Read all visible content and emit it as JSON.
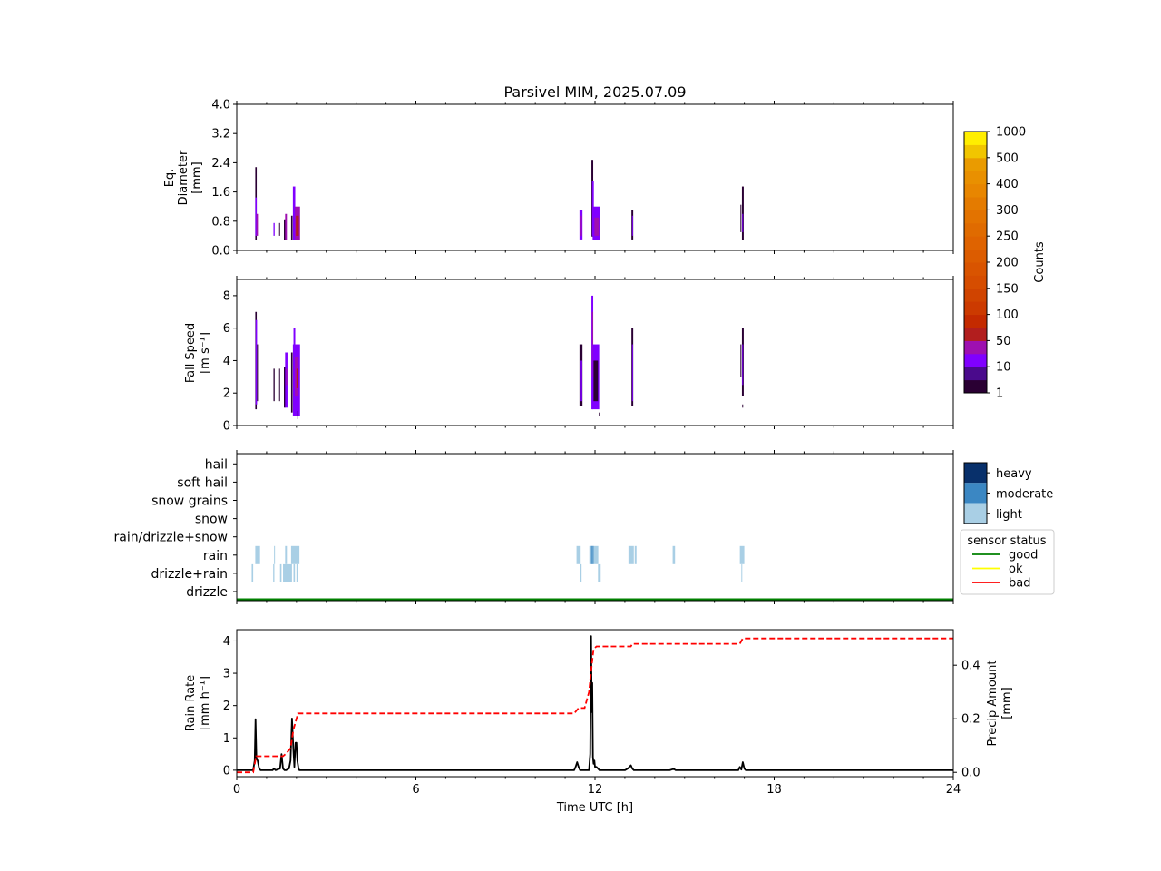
{
  "title": "Parsivel MIM, 2025.07.09",
  "chart_data": [
    {
      "type": "heatmap",
      "panel": "diameter",
      "ylabel": [
        "Eq.",
        "Diameter",
        "[mm]"
      ],
      "ylim": [
        0,
        4.0
      ],
      "yticks": [
        "0.0",
        "0.8",
        "1.6",
        "2.4",
        "3.2",
        "4.0"
      ],
      "ytick_values": [
        0,
        0.8,
        1.6,
        2.4,
        3.2,
        4.0
      ],
      "xlim": [
        0,
        24
      ],
      "columns": [
        {
          "t": 0.62,
          "w": 0.05,
          "ymin": 0.28,
          "ymax": 2.28,
          "level": 1
        },
        {
          "t": 0.62,
          "w": 0.05,
          "ymin": 0.4,
          "ymax": 1.45,
          "level": 2
        },
        {
          "t": 0.66,
          "w": 0.05,
          "ymin": 0.4,
          "ymax": 1.0,
          "level": 3
        },
        {
          "t": 1.23,
          "w": 0.04,
          "ymin": 0.4,
          "ymax": 0.75,
          "level": 2
        },
        {
          "t": 1.42,
          "w": 0.03,
          "ymin": 0.4,
          "ymax": 0.75,
          "level": 1
        },
        {
          "t": 1.58,
          "w": 0.05,
          "ymin": 0.28,
          "ymax": 0.85,
          "level": 1
        },
        {
          "t": 1.62,
          "w": 0.06,
          "ymin": 0.28,
          "ymax": 1.0,
          "level": 3
        },
        {
          "t": 1.82,
          "w": 0.05,
          "ymin": 0.28,
          "ymax": 0.95,
          "level": 1
        },
        {
          "t": 1.88,
          "w": 0.08,
          "ymin": 0.28,
          "ymax": 1.75,
          "level": 2
        },
        {
          "t": 1.95,
          "w": 0.17,
          "ymin": 0.28,
          "ymax": 1.2,
          "level": 3
        },
        {
          "t": 1.98,
          "w": 0.1,
          "ymin": 0.4,
          "ymax": 0.95,
          "level": 4
        },
        {
          "t": 11.48,
          "w": 0.1,
          "ymin": 0.3,
          "ymax": 1.1,
          "level": 2
        },
        {
          "t": 11.52,
          "w": 0.04,
          "ymin": 0.4,
          "ymax": 0.95,
          "level": 3
        },
        {
          "t": 11.88,
          "w": 0.06,
          "ymin": 0.38,
          "ymax": 2.48,
          "level": 1
        },
        {
          "t": 11.9,
          "w": 0.06,
          "ymin": 0.4,
          "ymax": 1.9,
          "level": 2
        },
        {
          "t": 11.92,
          "w": 0.25,
          "ymin": 0.28,
          "ymax": 1.2,
          "level": 2
        },
        {
          "t": 11.98,
          "w": 0.15,
          "ymin": 0.4,
          "ymax": 0.9,
          "level": 3
        },
        {
          "t": 13.22,
          "w": 0.06,
          "ymin": 0.3,
          "ymax": 1.1,
          "level": 1
        },
        {
          "t": 13.24,
          "w": 0.03,
          "ymin": 0.4,
          "ymax": 0.95,
          "level": 2
        },
        {
          "t": 16.87,
          "w": 0.02,
          "ymin": 0.5,
          "ymax": 1.25,
          "level": 1
        },
        {
          "t": 16.92,
          "w": 0.06,
          "ymin": 0.28,
          "ymax": 1.75,
          "level": 1
        },
        {
          "t": 16.93,
          "w": 0.03,
          "ymin": 0.5,
          "ymax": 1.0,
          "level": 2
        }
      ]
    },
    {
      "type": "heatmap",
      "panel": "fall_speed",
      "ylabel": [
        "Fall Speed",
        "[m s⁻¹]"
      ],
      "ylim": [
        0,
        9
      ],
      "yticks": [
        "0",
        "2",
        "4",
        "6",
        "8"
      ],
      "ytick_values": [
        0,
        2,
        4,
        6,
        8
      ],
      "xlim": [
        0,
        24
      ],
      "columns": [
        {
          "t": 0.62,
          "w": 0.05,
          "ymin": 1.0,
          "ymax": 7.0,
          "level": 1
        },
        {
          "t": 0.63,
          "w": 0.05,
          "ymin": 1.3,
          "ymax": 6.5,
          "level": 2
        },
        {
          "t": 0.68,
          "w": 0.03,
          "ymin": 1.5,
          "ymax": 5.0,
          "level": 1
        },
        {
          "t": 1.23,
          "w": 0.04,
          "ymin": 1.5,
          "ymax": 3.5,
          "level": 1
        },
        {
          "t": 1.42,
          "w": 0.03,
          "ymin": 1.5,
          "ymax": 3.5,
          "level": 1
        },
        {
          "t": 1.58,
          "w": 0.05,
          "ymin": 1.1,
          "ymax": 3.6,
          "level": 1
        },
        {
          "t": 1.62,
          "w": 0.08,
          "ymin": 1.1,
          "ymax": 4.5,
          "level": 2
        },
        {
          "t": 1.65,
          "w": 0.04,
          "ymin": 2.5,
          "ymax": 3.5,
          "level": 3
        },
        {
          "t": 1.82,
          "w": 0.05,
          "ymin": 0.8,
          "ymax": 4.5,
          "level": 1
        },
        {
          "t": 1.88,
          "w": 0.24,
          "ymin": 0.6,
          "ymax": 5.0,
          "level": 2
        },
        {
          "t": 1.9,
          "w": 0.06,
          "ymin": 1.5,
          "ymax": 6.0,
          "level": 2
        },
        {
          "t": 1.95,
          "w": 0.12,
          "ymin": 1.8,
          "ymax": 4.2,
          "level": 3
        },
        {
          "t": 2.0,
          "w": 0.06,
          "ymin": 2.3,
          "ymax": 3.5,
          "level": 4
        },
        {
          "t": 2.03,
          "w": 0.03,
          "ymin": 0.4,
          "ymax": 0.9,
          "level": 1
        },
        {
          "t": 11.48,
          "w": 0.1,
          "ymin": 1.2,
          "ymax": 5.0,
          "level": 1
        },
        {
          "t": 11.52,
          "w": 0.05,
          "ymin": 1.5,
          "ymax": 4.0,
          "level": 2
        },
        {
          "t": 11.88,
          "w": 0.06,
          "ymin": 1.0,
          "ymax": 8.0,
          "level": 2
        },
        {
          "t": 11.9,
          "w": 0.04,
          "ymin": 3.0,
          "ymax": 7.0,
          "level": 3
        },
        {
          "t": 11.92,
          "w": 0.22,
          "ymin": 1.0,
          "ymax": 5.0,
          "level": 2
        },
        {
          "t": 11.95,
          "w": 0.15,
          "ymin": 1.5,
          "ymax": 4.0,
          "level": 1
        },
        {
          "t": 12.13,
          "w": 0.03,
          "ymin": 0.6,
          "ymax": 0.8,
          "level": 1
        },
        {
          "t": 13.22,
          "w": 0.06,
          "ymin": 1.2,
          "ymax": 6.0,
          "level": 1
        },
        {
          "t": 13.24,
          "w": 0.03,
          "ymin": 1.5,
          "ymax": 5.0,
          "level": 2
        },
        {
          "t": 16.87,
          "w": 0.02,
          "ymin": 3.0,
          "ymax": 5.0,
          "level": 1
        },
        {
          "t": 16.92,
          "w": 0.06,
          "ymin": 1.8,
          "ymax": 6.0,
          "level": 1
        },
        {
          "t": 16.93,
          "w": 0.03,
          "ymin": 2.5,
          "ymax": 5.0,
          "level": 2
        },
        {
          "t": 16.93,
          "w": 0.03,
          "ymin": 1.1,
          "ymax": 1.3,
          "level": 1
        }
      ]
    },
    {
      "type": "heatmap",
      "panel": "precip_type",
      "categories": [
        "drizzle",
        "drizzle+rain",
        "rain",
        "rain/drizzle+snow",
        "snow",
        "snow grains",
        "soft hail",
        "hail"
      ],
      "xlim": [
        0,
        24
      ],
      "events": [
        {
          "t0": 0.5,
          "t1": 0.55,
          "category": "drizzle+rain",
          "intensity": "light"
        },
        {
          "t0": 0.62,
          "t1": 0.78,
          "category": "rain",
          "intensity": "light"
        },
        {
          "t0": 1.22,
          "t1": 1.26,
          "category": "drizzle+rain",
          "intensity": "light"
        },
        {
          "t0": 1.25,
          "t1": 1.28,
          "category": "rain",
          "intensity": "light"
        },
        {
          "t0": 1.45,
          "t1": 1.5,
          "category": "drizzle+rain",
          "intensity": "light"
        },
        {
          "t0": 1.55,
          "t1": 1.85,
          "category": "drizzle+rain",
          "intensity": "light"
        },
        {
          "t0": 1.62,
          "t1": 1.68,
          "category": "rain",
          "intensity": "light"
        },
        {
          "t0": 1.82,
          "t1": 2.1,
          "category": "rain",
          "intensity": "light"
        },
        {
          "t0": 1.9,
          "t1": 1.95,
          "category": "drizzle+rain",
          "intensity": "light"
        },
        {
          "t0": 2.0,
          "t1": 2.04,
          "category": "drizzle+rain",
          "intensity": "light"
        },
        {
          "t0": 11.38,
          "t1": 11.52,
          "category": "rain",
          "intensity": "light"
        },
        {
          "t0": 11.5,
          "t1": 11.55,
          "category": "drizzle+rain",
          "intensity": "light"
        },
        {
          "t0": 11.81,
          "t1": 12.11,
          "category": "rain",
          "intensity": "light"
        },
        {
          "t0": 11.87,
          "t1": 11.9,
          "category": "rain",
          "intensity": "moderate"
        },
        {
          "t0": 11.92,
          "t1": 11.95,
          "category": "rain",
          "intensity": "moderate"
        },
        {
          "t0": 12.1,
          "t1": 12.19,
          "category": "drizzle+rain",
          "intensity": "light"
        },
        {
          "t0": 13.12,
          "t1": 13.3,
          "category": "rain",
          "intensity": "light"
        },
        {
          "t0": 13.33,
          "t1": 13.39,
          "category": "rain",
          "intensity": "light"
        },
        {
          "t0": 14.6,
          "t1": 14.68,
          "category": "rain",
          "intensity": "light"
        },
        {
          "t0": 16.85,
          "t1": 17.0,
          "category": "rain",
          "intensity": "light"
        },
        {
          "t0": 16.9,
          "t1": 16.92,
          "category": "drizzle+rain",
          "intensity": "light"
        }
      ],
      "sensor_status": [
        {
          "t0": 0,
          "t1": 24,
          "status": "good"
        }
      ]
    },
    {
      "type": "line",
      "panel": "rain",
      "xlabel": "Time UTC [h]",
      "xticks": [
        "0",
        "6",
        "12",
        "18",
        "24"
      ],
      "xtick_values": [
        0,
        6,
        12,
        18,
        24
      ],
      "xlim": [
        0,
        24
      ],
      "ylabel": [
        "Rain Rate",
        "[mm h⁻¹]"
      ],
      "ylim": [
        -0.2,
        4.35
      ],
      "yticks": [
        "0",
        "1",
        "2",
        "3",
        "4"
      ],
      "ytick_values": [
        0,
        1,
        2,
        3,
        4
      ],
      "y2label": [
        "Precip Amount",
        "[mm]"
      ],
      "y2lim": [
        -0.0162,
        0.5328
      ],
      "y2ticks": [
        "0.0",
        "0.2",
        "0.4"
      ],
      "y2tick_values": [
        0,
        0.2,
        0.4
      ],
      "series": [
        {
          "name": "Rain Rate",
          "color": "#000000",
          "style": "solid",
          "x": [
            0,
            0.55,
            0.6,
            0.63,
            0.66,
            0.7,
            0.75,
            0.8,
            1.2,
            1.25,
            1.3,
            1.45,
            1.5,
            1.55,
            1.6,
            1.65,
            1.75,
            1.8,
            1.85,
            1.9,
            1.93,
            1.97,
            2.0,
            2.03,
            2.07,
            2.1,
            2.15,
            11.3,
            11.35,
            11.4,
            11.45,
            11.5,
            11.8,
            11.84,
            11.87,
            11.89,
            11.91,
            11.93,
            11.95,
            11.98,
            12.0,
            12.05,
            12.1,
            12.15,
            12.2,
            13.0,
            13.1,
            13.2,
            13.25,
            13.3,
            14.5,
            14.6,
            14.65,
            14.7,
            16.8,
            16.85,
            16.9,
            16.95,
            17.0,
            17.05,
            24
          ],
          "y": [
            0,
            0,
            0.3,
            1.58,
            0.35,
            0.3,
            0.05,
            0,
            0,
            0.05,
            0,
            0.05,
            0.5,
            0.05,
            0,
            0,
            0.05,
            0.3,
            1.6,
            0.6,
            0.1,
            0.85,
            0.85,
            0.3,
            0.05,
            0,
            0,
            0,
            0.1,
            0.25,
            0.1,
            0,
            0,
            0.5,
            4.15,
            1.8,
            2.7,
            0.4,
            0.2,
            0.3,
            0.1,
            0.1,
            0.05,
            0,
            0,
            0,
            0.05,
            0.15,
            0.05,
            0,
            0,
            0.03,
            0.03,
            0,
            0,
            0.1,
            0.02,
            0.25,
            0.05,
            0,
            0
          ]
        },
        {
          "name": "Precip Amount",
          "axis": "right",
          "color": "#ff0000",
          "style": "dashed",
          "x": [
            0,
            0.55,
            0.65,
            1.55,
            1.65,
            1.8,
            1.9,
            2.05,
            11.3,
            11.45,
            11.65,
            11.8,
            11.9,
            11.95,
            12.05,
            12.2,
            13.2,
            13.25,
            16.85,
            16.95,
            24
          ],
          "y": [
            0,
            0,
            0.06,
            0.06,
            0.07,
            0.09,
            0.16,
            0.22,
            0.22,
            0.24,
            0.24,
            0.3,
            0.41,
            0.46,
            0.47,
            0.47,
            0.47,
            0.48,
            0.48,
            0.5,
            0.5
          ]
        }
      ]
    }
  ],
  "colorbar": {
    "label": "Counts",
    "ticks": [
      "1",
      "10",
      "50",
      "100",
      "150",
      "200",
      "250",
      "300",
      "400",
      "500",
      "1000"
    ],
    "bands": [
      "#2a0033",
      "#4a0a8c",
      "#8000ff",
      "#9e10b0",
      "#b21e1e",
      "#c42a00",
      "#cc3a00",
      "#d04400",
      "#d64d00",
      "#d95400",
      "#dc5c00",
      "#df6300",
      "#e06b00",
      "#e37300",
      "#e47b00",
      "#e88600",
      "#e99000",
      "#ea9b00",
      "#f1c500",
      "#ffee00"
    ]
  },
  "intensity_legend": {
    "items": [
      {
        "label": "heavy",
        "color": "#08306b"
      },
      {
        "label": "moderate",
        "color": "#3b87c3"
      },
      {
        "label": "light",
        "color": "#a9cfe5"
      }
    ]
  },
  "sensor_legend": {
    "title": "sensor status",
    "items": [
      {
        "label": "good",
        "color": "#008000"
      },
      {
        "label": "ok",
        "color": "#ffff00"
      },
      {
        "label": "bad",
        "color": "#ff0000"
      }
    ]
  }
}
